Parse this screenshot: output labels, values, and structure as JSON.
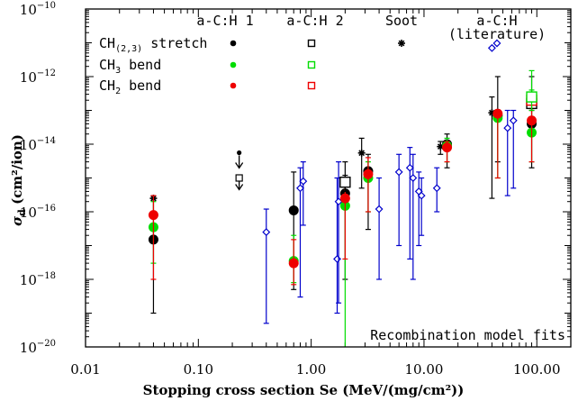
{
  "chart_data": {
    "type": "scatter",
    "xscale": "log",
    "yscale": "log",
    "xlim": [
      0.01,
      200
    ],
    "ylim": [
      1e-20,
      1e-10
    ],
    "xlabel": "Stopping cross section Se (MeV/(mg/cm²))",
    "ylabel_main": "σ",
    "ylabel_sub": "d",
    "ylabel_units": " (cm²/ion)",
    "x_ticks": [
      {
        "value": 0.01,
        "label": "0.01"
      },
      {
        "value": 0.1,
        "label": "0.10"
      },
      {
        "value": 1,
        "label": "1.00"
      },
      {
        "value": 10,
        "label": "10.00"
      },
      {
        "value": 100,
        "label": "100.00"
      }
    ],
    "y_ticks": [
      {
        "value": 1e-10,
        "base": "10",
        "exp": "−10"
      },
      {
        "value": 1e-12,
        "base": "10",
        "exp": "−12"
      },
      {
        "value": 1e-14,
        "base": "10",
        "exp": "−14"
      },
      {
        "value": 1e-16,
        "base": "10",
        "exp": "−16"
      },
      {
        "value": 1e-18,
        "base": "10",
        "exp": "−18"
      },
      {
        "value": 1e-20,
        "base": "10",
        "exp": "−20"
      }
    ],
    "column_headers": [
      {
        "label": "a-C:H 1"
      },
      {
        "label": "a-C:H 2"
      },
      {
        "label": "Soot"
      },
      {
        "label": "a-C:H"
      },
      {
        "label": "(literature)"
      }
    ],
    "legend_rows": [
      {
        "label": "CH(2,3) stretch",
        "base": "CH",
        "sub": "(2,3)",
        "rest": " stretch",
        "color": "#000000"
      },
      {
        "label": "CH3 bend",
        "base": "CH",
        "sub": "3",
        "rest": " bend",
        "color": "#00dd00"
      },
      {
        "label": "CH2 bend",
        "base": "CH",
        "sub": "2",
        "rest": " bend",
        "color": "#ee0000"
      }
    ],
    "annotation": "Recombination model fits",
    "colors": {
      "stretch": "#000000",
      "ch3": "#00dd00",
      "ch2": "#ee0000",
      "literature": "#0000cc"
    },
    "series": [
      {
        "name": "a-C:H 1",
        "marker": "filled-circle",
        "points": [
          {
            "x": 0.04,
            "y": 1.5e-17,
            "lo": 1e-19,
            "hi": 2.5e-16,
            "color": "#000000"
          },
          {
            "x": 0.04,
            "y": 3.5e-17,
            "lo": 3e-18,
            "hi": 2e-16,
            "color": "#00dd00"
          },
          {
            "x": 0.04,
            "y": 8e-17,
            "lo": 1e-18,
            "hi": 3e-16,
            "color": "#ee0000"
          },
          {
            "x": 0.7,
            "y": 1.1e-16,
            "lo": 5e-19,
            "hi": 1.5e-15,
            "color": "#000000"
          },
          {
            "x": 0.7,
            "y": 3.5e-18,
            "lo": 8e-19,
            "hi": 2e-17,
            "color": "#00dd00"
          },
          {
            "x": 0.7,
            "y": 3e-18,
            "lo": 7e-19,
            "hi": 1.5e-17,
            "color": "#ee0000"
          },
          {
            "x": 2.0,
            "y": 3.5e-16,
            "lo": 1e-18,
            "hi": 3e-15,
            "color": "#000000"
          },
          {
            "x": 2.0,
            "y": 1.5e-16,
            "lo": 1e-20,
            "hi": 6e-16,
            "color": "#00dd00"
          },
          {
            "x": 2.0,
            "y": 2.5e-16,
            "lo": 4e-18,
            "hi": 1e-15,
            "color": "#ee0000"
          },
          {
            "x": 3.2,
            "y": 1.6e-15,
            "lo": 3e-17,
            "hi": 5e-15,
            "color": "#000000"
          },
          {
            "x": 3.2,
            "y": 1e-15,
            "lo": 1e-16,
            "hi": 3e-15,
            "color": "#00dd00"
          },
          {
            "x": 3.2,
            "y": 1.3e-15,
            "lo": 1e-16,
            "hi": 4e-15,
            "color": "#ee0000"
          },
          {
            "x": 16,
            "y": 1e-14,
            "lo": 2e-15,
            "hi": 2e-14,
            "color": "#000000"
          },
          {
            "x": 16,
            "y": 9e-15,
            "lo": 3e-15,
            "hi": 1.5e-14,
            "color": "#00dd00"
          },
          {
            "x": 16,
            "y": 8e-15,
            "lo": 3e-15,
            "hi": 1.2e-14,
            "color": "#ee0000"
          },
          {
            "x": 45,
            "y": 7e-14,
            "lo": 3e-15,
            "hi": 1e-12,
            "color": "#000000"
          },
          {
            "x": 45,
            "y": 6e-14,
            "lo": 1e-15,
            "hi": 1e-13,
            "color": "#00dd00"
          },
          {
            "x": 45,
            "y": 8e-14,
            "lo": 1e-15,
            "hi": 1e-13,
            "color": "#ee0000"
          },
          {
            "x": 90,
            "y": 4e-14,
            "lo": 2e-15,
            "hi": 1e-12,
            "color": "#000000"
          },
          {
            "x": 90,
            "y": 2.2e-14,
            "lo": 3e-15,
            "hi": 1.5e-12,
            "color": "#00dd00"
          },
          {
            "x": 90,
            "y": 5e-14,
            "lo": 3e-15,
            "hi": 3e-13,
            "color": "#ee0000"
          }
        ]
      },
      {
        "name": "a-C:H 2",
        "marker": "open-square",
        "points": [
          {
            "x": 0.23,
            "y": 1e-15,
            "upper_limit": true,
            "color": "#000000"
          },
          {
            "x": 2.0,
            "y": 7.5e-16,
            "lo": 4e-16,
            "hi": 1.2e-15,
            "color": "#000000"
          },
          {
            "x": 90,
            "y": 1.6e-13,
            "lo": 1e-13,
            "hi": 3e-13,
            "color": "#000000"
          },
          {
            "x": 90,
            "y": 2e-13,
            "lo": 1e-13,
            "hi": 3e-13,
            "color": "#ee0000"
          },
          {
            "x": 90,
            "y": 2.5e-13,
            "lo": 1e-13,
            "hi": 4e-13,
            "color": "#00dd00"
          }
        ]
      },
      {
        "name": "Soot",
        "marker": "asterisk",
        "points": [
          {
            "x": 0.04,
            "y": 2.5e-16,
            "color": "#000000"
          },
          {
            "x": 2.8,
            "y": 5.5e-15,
            "lo": 5e-16,
            "hi": 1.5e-14,
            "color": "#000000"
          },
          {
            "x": 14,
            "y": 8.5e-15,
            "lo": 5e-15,
            "hi": 1.2e-14,
            "color": "#000000"
          },
          {
            "x": 40,
            "y": 8.5e-14,
            "lo": 2.5e-16,
            "hi": 2.5e-13,
            "color": "#000000"
          }
        ]
      },
      {
        "name": "a-C:H (literature)",
        "marker": "open-diamond",
        "points": [
          {
            "x": 0.4,
            "y": 2.5e-17,
            "lo": 5e-20,
            "hi": 1.2e-16,
            "color": "#0000cc"
          },
          {
            "x": 0.8,
            "y": 5e-16,
            "lo": 3e-19,
            "hi": 2e-15,
            "color": "#0000cc"
          },
          {
            "x": 0.85,
            "y": 8e-16,
            "lo": 4e-17,
            "hi": 3e-15,
            "color": "#0000cc"
          },
          {
            "x": 1.7,
            "y": 4e-18,
            "lo": 1e-19,
            "hi": 1e-15,
            "color": "#0000cc"
          },
          {
            "x": 1.75,
            "y": 2e-16,
            "lo": 2e-19,
            "hi": 3e-15,
            "color": "#0000cc"
          },
          {
            "x": 4.0,
            "y": 1.2e-16,
            "lo": 1e-18,
            "hi": 1e-15,
            "color": "#0000cc"
          },
          {
            "x": 6.0,
            "y": 1.5e-15,
            "lo": 1e-17,
            "hi": 5e-15,
            "color": "#0000cc"
          },
          {
            "x": 7.5,
            "y": 2e-15,
            "lo": 4e-18,
            "hi": 8e-15,
            "color": "#0000cc"
          },
          {
            "x": 8.0,
            "y": 1e-15,
            "lo": 1e-18,
            "hi": 5e-15,
            "color": "#0000cc"
          },
          {
            "x": 9.0,
            "y": 4e-16,
            "lo": 1e-17,
            "hi": 1.5e-15,
            "color": "#0000cc"
          },
          {
            "x": 9.5,
            "y": 3e-16,
            "lo": 2e-17,
            "hi": 1e-15,
            "color": "#0000cc"
          },
          {
            "x": 13,
            "y": 5e-16,
            "lo": 1e-16,
            "hi": 2e-15,
            "color": "#0000cc"
          },
          {
            "x": 55,
            "y": 3e-14,
            "lo": 3e-16,
            "hi": 1e-13,
            "color": "#0000cc"
          },
          {
            "x": 62,
            "y": 5e-14,
            "lo": 5e-16,
            "hi": 1e-13,
            "color": "#0000cc"
          },
          {
            "x": 40,
            "y": 7e-12,
            "color": "#0000cc"
          }
        ]
      }
    ]
  }
}
